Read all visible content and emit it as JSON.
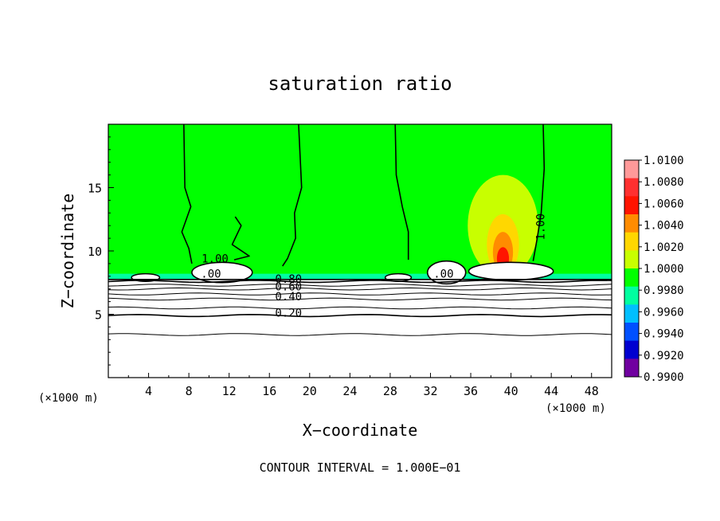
{
  "chart_data": {
    "type": "heatmap",
    "title": "saturation ratio",
    "xlabel": "X−coordinate",
    "ylabel": "Z−coordinate",
    "x_unit_left": "(×1000 m)",
    "x_unit_right": "(×1000 m)",
    "xlim": [
      0,
      50
    ],
    "ylim": [
      0,
      20
    ],
    "xticks": [
      4,
      8,
      12,
      16,
      20,
      24,
      28,
      32,
      36,
      40,
      44,
      48
    ],
    "yticks": [
      5,
      10,
      15
    ],
    "footer": "CONTOUR INTERVAL = 1.000E−01",
    "colorbar": {
      "levels": [
        "1.0100",
        "1.0080",
        "1.0060",
        "1.0040",
        "1.0020",
        "1.0000",
        "0.9980",
        "0.9960",
        "0.9940",
        "0.9920",
        "0.9900"
      ],
      "colors": [
        "#ff9999",
        "#ff3030",
        "#ff1400",
        "#ff8c00",
        "#ffd700",
        "#c8ff00",
        "#00ff00",
        "#00ffa0",
        "#00bfff",
        "#0050ff",
        "#0000d0",
        "#7000a0"
      ]
    },
    "contour_labels": [
      {
        "text": "1.00",
        "x": 10.6,
        "y": 9.1
      },
      {
        "text": "1.00",
        "x": 43.3,
        "y": 11.9
      },
      {
        "text": ".00",
        "x": 10.2,
        "y": 7.9
      },
      {
        "text": ".00",
        "x": 33.3,
        "y": 7.9
      },
      {
        "text": "0.80",
        "x": 17.9,
        "y": 7.5
      },
      {
        "text": "0.60",
        "x": 17.9,
        "y": 6.9
      },
      {
        "text": "0.40",
        "x": 17.9,
        "y": 6.1
      },
      {
        "text": "0.20",
        "x": 17.9,
        "y": 4.8
      }
    ],
    "colored_spots": [
      {
        "x": 39.2,
        "y": 10.5,
        "rx": 1.6,
        "ry": 2.4,
        "color": "#ffd700"
      },
      {
        "x": 39.2,
        "y": 9.9,
        "rx": 1.0,
        "ry": 1.6,
        "color": "#ff8c00"
      },
      {
        "x": 39.2,
        "y": 9.4,
        "rx": 0.6,
        "ry": 0.9,
        "color": "#ff1400"
      },
      {
        "x": 39.2,
        "y": 12.0,
        "rx": 3.5,
        "ry": 4.0,
        "color": "#c8ff00"
      }
    ],
    "white_blobs": [
      {
        "x": 11.3,
        "y": 8.3,
        "rx": 3.0,
        "ry": 0.8
      },
      {
        "x": 33.6,
        "y": 8.3,
        "rx": 1.9,
        "ry": 0.9
      },
      {
        "x": 40.0,
        "y": 8.4,
        "rx": 4.2,
        "ry": 0.7
      },
      {
        "x": 3.7,
        "y": 7.9,
        "rx": 1.4,
        "ry": 0.3
      },
      {
        "x": 28.8,
        "y": 7.9,
        "rx": 1.3,
        "ry": 0.3
      }
    ],
    "contour_lines": [
      {
        "level": "0.20",
        "y": 4.9
      },
      {
        "level": "0.30",
        "y": 5.5
      },
      {
        "level": "0.40",
        "y": 6.2
      },
      {
        "level": "0.50",
        "y": 6.6
      },
      {
        "level": "0.60",
        "y": 7.0
      },
      {
        "level": "0.70",
        "y": 7.3
      },
      {
        "level": "0.80",
        "y": 7.6
      },
      {
        "level": "0.10",
        "y": 3.4
      }
    ],
    "cloud_boundaries": [
      [
        [
          7.5,
          20
        ],
        [
          7.6,
          15
        ],
        [
          8.2,
          13.5
        ],
        [
          7.3,
          11.5
        ],
        [
          8.0,
          10.2
        ],
        [
          8.3,
          9.0
        ]
      ],
      [
        [
          18.9,
          20
        ],
        [
          19.2,
          15
        ],
        [
          18.5,
          13.0
        ],
        [
          18.6,
          11.0
        ],
        [
          17.8,
          9.4
        ],
        [
          17.3,
          8.8
        ]
      ],
      [
        [
          28.5,
          20
        ],
        [
          28.6,
          16
        ],
        [
          29.2,
          13.5
        ],
        [
          29.8,
          11.5
        ],
        [
          29.8,
          9.3
        ]
      ],
      [
        [
          43.2,
          20
        ],
        [
          43.3,
          16.5
        ],
        [
          43.0,
          13.0
        ],
        [
          42.6,
          11.0
        ],
        [
          42.2,
          9.2
        ]
      ],
      [
        [
          12.6,
          12.7
        ],
        [
          13.2,
          12.0
        ],
        [
          12.3,
          10.5
        ],
        [
          14.0,
          9.6
        ],
        [
          12.5,
          9.3
        ]
      ]
    ]
  }
}
